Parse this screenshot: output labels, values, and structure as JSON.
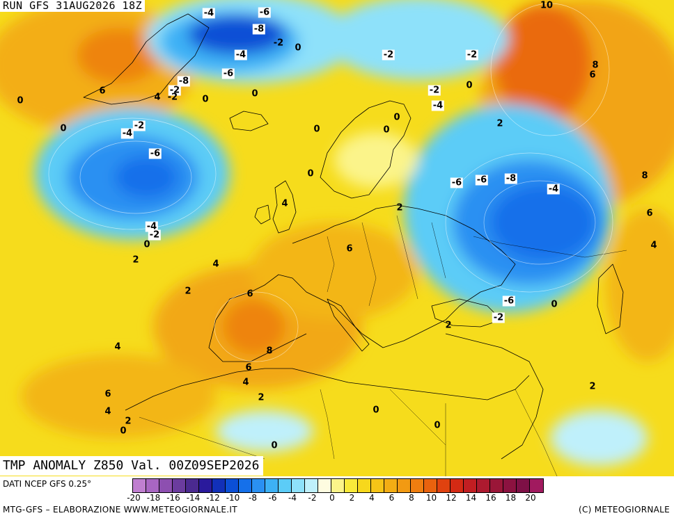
{
  "header": {
    "run_label": "RUN GFS 31AUG2026 18Z"
  },
  "map": {
    "title": "TMP ANOMALY Z850 Val. 00Z09SEP2026",
    "background_color": "#f6dc1c",
    "labels": [
      "-4",
      "-6",
      "-8",
      "-2",
      "0",
      "-4",
      "-6",
      "-2",
      "-8",
      "4",
      "-2",
      "0",
      "6",
      "0",
      "-2",
      "10",
      "-2",
      "-2",
      "0",
      "-4",
      "8",
      "6",
      "0",
      "-2",
      "-4",
      "0",
      "0",
      "0",
      "-6",
      "0",
      "2",
      "4",
      "0",
      "-6",
      "-6",
      "-8",
      "-4",
      "8",
      "2",
      "-4",
      "-2",
      "0",
      "6",
      "6",
      "4",
      "2",
      "2",
      "6",
      "-6",
      "0",
      "-2",
      "2",
      "4",
      "8",
      "6",
      "4",
      "4",
      "2",
      "6",
      "2",
      "4",
      "2",
      "0",
      "0",
      "0",
      "0"
    ]
  },
  "footer": {
    "data_source": "DATI NCEP GFS 0.25°",
    "credit_left": "MTG-GFS – ELABORAZIONE WWW.METEOGIORNALE.IT",
    "credit_right": "(C) METEOGIORNALE",
    "colorbar_colors": [
      "#c07fd0",
      "#a866c2",
      "#8d4fb0",
      "#6b3c9e",
      "#4b2a90",
      "#2a1a9c",
      "#1230b8",
      "#0b4fd6",
      "#1570ea",
      "#2a90f2",
      "#3db1f5",
      "#5cccf7",
      "#8ee1fa",
      "#bff0fb",
      "#fefce0",
      "#fbf48a",
      "#f9ea3a",
      "#f7d81c",
      "#f6c417",
      "#f3ad14",
      "#f29a12",
      "#ef7e10",
      "#e9620e",
      "#e0420f",
      "#d42a14",
      "#c21e22",
      "#ad1a2f",
      "#9a1638",
      "#8c1240",
      "#7e1046",
      "#a11a5f"
    ],
    "colorbar_ticks": [
      "-20",
      "-18",
      "-16",
      "-14",
      "-12",
      "-10",
      "-8",
      "-6",
      "-4",
      "-2",
      "0",
      "2",
      "4",
      "6",
      "8",
      "10",
      "12",
      "14",
      "16",
      "18",
      "20"
    ]
  }
}
